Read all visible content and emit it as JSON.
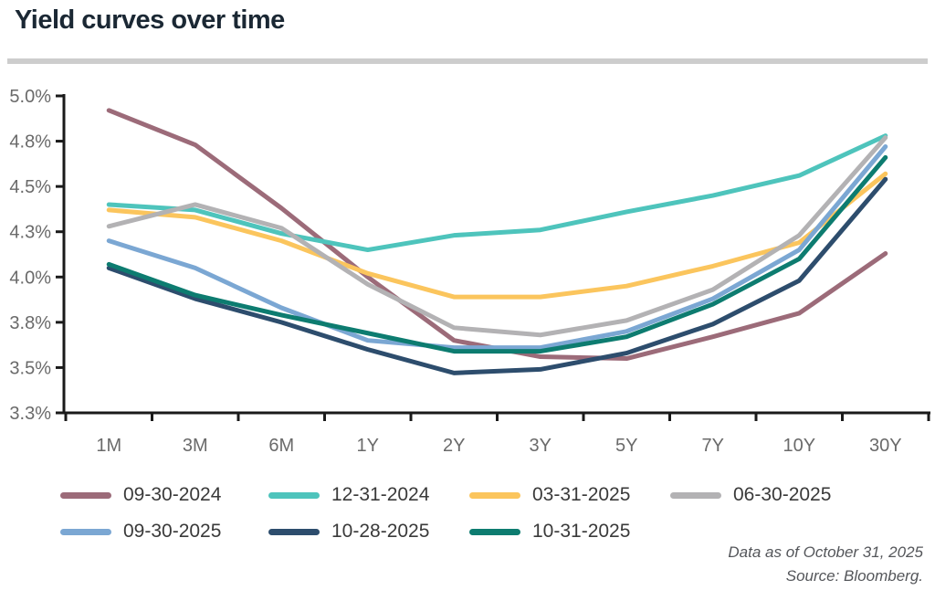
{
  "page": {
    "title": "Yield curves over time",
    "footer": {
      "line1": "Data as of October 31, 2025",
      "line2": "Source: Bloomberg."
    }
  },
  "colors": {
    "background": "#ffffff",
    "title": "#1b2834",
    "divider": "#cdcdcd",
    "axis": "#1a1a1a",
    "tick_label": "#6a6a6a",
    "legend_label": "#3a3a3a",
    "footer_text": "#54565a"
  },
  "chart_data": {
    "type": "line",
    "title": "Yield curves over time",
    "xlabel": "",
    "ylabel": "",
    "unit": "%",
    "grid": false,
    "legend_position": "bottom",
    "categories": [
      "1M",
      "3M",
      "6M",
      "1Y",
      "2Y",
      "3Y",
      "5Y",
      "7Y",
      "10Y",
      "30Y"
    ],
    "y_axis": {
      "min": 3.25,
      "max": 5.0,
      "tick_step": 0.25,
      "tick_values": [
        5.0,
        4.75,
        4.5,
        4.25,
        4.0,
        3.75,
        3.5,
        3.25
      ],
      "tick_labels": [
        "5.0%",
        "4.8%",
        "4.5%",
        "4.3%",
        "4.0%",
        "3.8%",
        "3.5%",
        "3.3%"
      ]
    },
    "ylim": [
      3.25,
      5.0
    ],
    "series": [
      {
        "name": "09-30-2024",
        "color": "#9c6b79",
        "values": [
          4.92,
          4.73,
          4.38,
          4.0,
          3.65,
          3.56,
          3.55,
          3.67,
          3.8,
          4.13
        ]
      },
      {
        "name": "12-31-2024",
        "color": "#4ec4bc",
        "values": [
          4.4,
          4.37,
          4.24,
          4.15,
          4.23,
          4.26,
          4.36,
          4.45,
          4.56,
          4.78
        ]
      },
      {
        "name": "03-31-2025",
        "color": "#fbc55d",
        "values": [
          4.37,
          4.33,
          4.2,
          4.02,
          3.89,
          3.89,
          3.95,
          4.06,
          4.19,
          4.57
        ]
      },
      {
        "name": "06-30-2025",
        "color": "#b3b2b4",
        "values": [
          4.28,
          4.4,
          4.27,
          3.96,
          3.72,
          3.68,
          3.76,
          3.93,
          4.23,
          4.77
        ]
      },
      {
        "name": "09-30-2025",
        "color": "#7ba7d3",
        "values": [
          4.2,
          4.05,
          3.83,
          3.65,
          3.61,
          3.61,
          3.7,
          3.88,
          4.15,
          4.72
        ]
      },
      {
        "name": "10-28-2025",
        "color": "#2d4d6d",
        "values": [
          4.05,
          3.88,
          3.75,
          3.6,
          3.47,
          3.49,
          3.58,
          3.74,
          3.98,
          4.54
        ]
      },
      {
        "name": "10-31-2025",
        "color": "#0d7c70",
        "values": [
          4.07,
          3.9,
          3.79,
          3.69,
          3.59,
          3.59,
          3.67,
          3.85,
          4.1,
          4.66
        ]
      }
    ],
    "legend_rows": [
      4,
      3
    ],
    "legend_col_lefts": [
      66,
      294,
      514,
      734
    ]
  }
}
